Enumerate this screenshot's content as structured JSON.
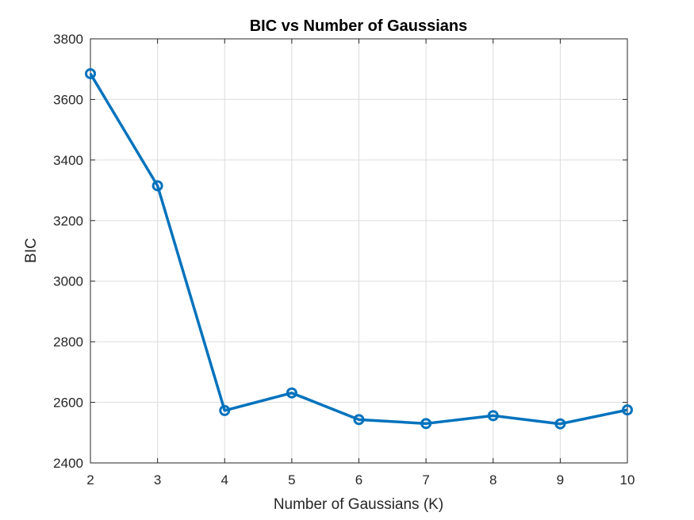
{
  "chart_data": {
    "type": "line",
    "title": "BIC vs Number of Gaussians",
    "xlabel": "Number of Gaussians (K)",
    "ylabel": "BIC",
    "xlim": [
      2,
      10
    ],
    "ylim": [
      2400,
      3800
    ],
    "xticks": [
      2,
      3,
      4,
      5,
      6,
      7,
      8,
      9,
      10
    ],
    "yticks": [
      2400,
      2600,
      2800,
      3000,
      3200,
      3400,
      3600,
      3800
    ],
    "grid": true,
    "series": [
      {
        "x": [
          2,
          3,
          4,
          5,
          6,
          7,
          8,
          9,
          10
        ],
        "values": [
          3685,
          3315,
          2573,
          2631,
          2543,
          2530,
          2556,
          2529,
          2575
        ],
        "color": "#0072BD",
        "marker": "circle"
      }
    ]
  }
}
